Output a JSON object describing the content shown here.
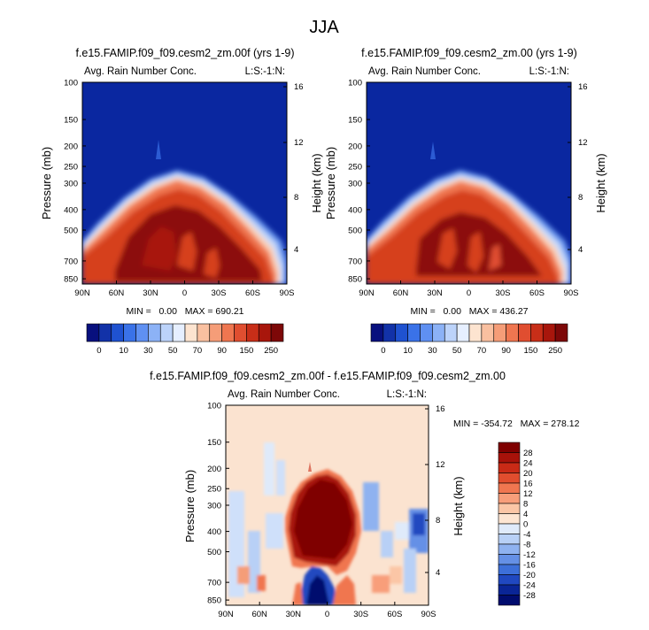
{
  "chart_data": {
    "type": "heatmap",
    "title": "JJA",
    "panels": [
      {
        "title": "f.e15.FAMIP.f09_f09.cesm2_zm.00f (yrs 1-9)",
        "left_label": "Avg. Rain Number Conc.",
        "right_label": "L:S:-1:N:",
        "xlabel": "",
        "ylabel": "Pressure (mb)",
        "ylabel_right": "Height (km)",
        "xticks": [
          "90N",
          "60N",
          "30N",
          "0",
          "30S",
          "60S",
          "90S"
        ],
        "yticks": [
          "100",
          "150",
          "200",
          "250",
          "300",
          "400",
          "500",
          "700",
          "850"
        ],
        "yticks_right": [
          "16",
          "12",
          "8",
          "4"
        ],
        "stats": "MIN =   0.00   MAX = 690.21",
        "colorbar": {
          "labels": [
            "0",
            "10",
            "30",
            "50",
            "70",
            "90",
            "150",
            "250"
          ],
          "colors": [
            "#08107e",
            "#1232a8",
            "#1f52d0",
            "#3a72e8",
            "#5f90f2",
            "#8cb2f6",
            "#bcd3fa",
            "#e6efff",
            "#fde4d0",
            "#f9c0a0",
            "#f59d78",
            "#ef7650",
            "#e04e30",
            "#c82e18",
            "#a8160c",
            "#7d0808"
          ]
        }
      },
      {
        "title": "f.e15.FAMIP.f09_f09.cesm2_zm.00 (yrs 1-9)",
        "left_label": "Avg. Rain Number Conc.",
        "right_label": "L:S:-1:N:",
        "xlabel": "",
        "ylabel": "Pressure (mb)",
        "ylabel_right": "Height (km)",
        "xticks": [
          "90N",
          "60N",
          "30N",
          "0",
          "30S",
          "60S",
          "90S"
        ],
        "yticks": [
          "100",
          "150",
          "200",
          "250",
          "300",
          "400",
          "500",
          "700",
          "850"
        ],
        "yticks_right": [
          "16",
          "12",
          "8",
          "4"
        ],
        "stats": "MIN =   0.00   MAX = 436.27",
        "colorbar": {
          "labels": [
            "0",
            "10",
            "30",
            "50",
            "70",
            "90",
            "150",
            "250"
          ],
          "colors": [
            "#08107e",
            "#1232a8",
            "#1f52d0",
            "#3a72e8",
            "#5f90f2",
            "#8cb2f6",
            "#bcd3fa",
            "#e6efff",
            "#fde4d0",
            "#f9c0a0",
            "#f59d78",
            "#ef7650",
            "#e04e30",
            "#c82e18",
            "#a8160c",
            "#7d0808"
          ]
        }
      },
      {
        "title": "f.e15.FAMIP.f09_f09.cesm2_zm.00f - f.e15.FAMIP.f09_f09.cesm2_zm.00",
        "left_label": "Avg. Rain Number Conc.",
        "right_label": "L:S:-1:N:",
        "xlabel": "",
        "ylabel": "Pressure (mb)",
        "ylabel_right": "Height (km)",
        "xticks": [
          "90N",
          "60N",
          "30N",
          "0",
          "30S",
          "60S",
          "90S"
        ],
        "yticks": [
          "100",
          "150",
          "200",
          "250",
          "300",
          "400",
          "500",
          "700",
          "850"
        ],
        "yticks_right": [
          "16",
          "12",
          "8",
          "4"
        ],
        "stats": "MIN = -354.72   MAX = 278.12",
        "colorbar": {
          "labels": [
            "28",
            "24",
            "20",
            "16",
            "12",
            "8",
            "4",
            "0",
            "-4",
            "-8",
            "-12",
            "-16",
            "-20",
            "-24",
            "-28"
          ],
          "colors": [
            "#7f0000",
            "#a8120a",
            "#c92a16",
            "#e14d2e",
            "#f07650",
            "#f89e7a",
            "#fbc6a6",
            "#fde5d2",
            "#dfeafa",
            "#b8d0f6",
            "#8fb2f0",
            "#6590e6",
            "#3d6fd9",
            "#2048c0",
            "#0a2596",
            "#000c6e"
          ]
        }
      }
    ],
    "xrange": [
      "90N",
      "90S"
    ],
    "yrange_mb": [
      100,
      900
    ]
  }
}
